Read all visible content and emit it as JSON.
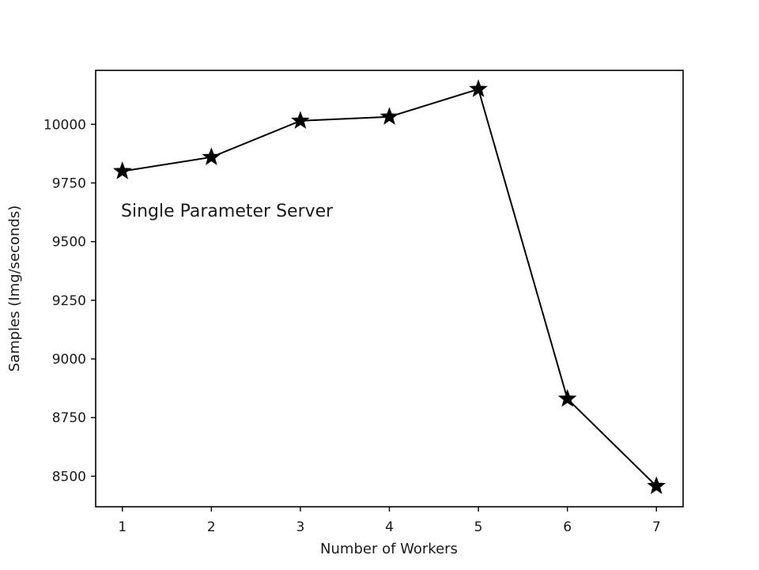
{
  "chart_data": {
    "type": "line",
    "title": "",
    "xlabel": "Number of Workers",
    "ylabel": "Samples (Img/seconds)",
    "x": [
      1,
      2,
      3,
      4,
      5,
      6,
      7
    ],
    "series": [
      {
        "values": [
          9800,
          9860,
          10015,
          10032,
          10150,
          8830,
          8458
        ]
      }
    ],
    "xlim": [
      0.7,
      7.3
    ],
    "ylim": [
      8370,
      10230
    ],
    "xticks": [
      1,
      2,
      3,
      4,
      5,
      6,
      7
    ],
    "yticks": [
      8500,
      8750,
      9000,
      9250,
      9500,
      9750,
      10000
    ],
    "annotation": "Single Parameter Server",
    "marker": "star",
    "grid": false,
    "line_color": "#000000"
  }
}
